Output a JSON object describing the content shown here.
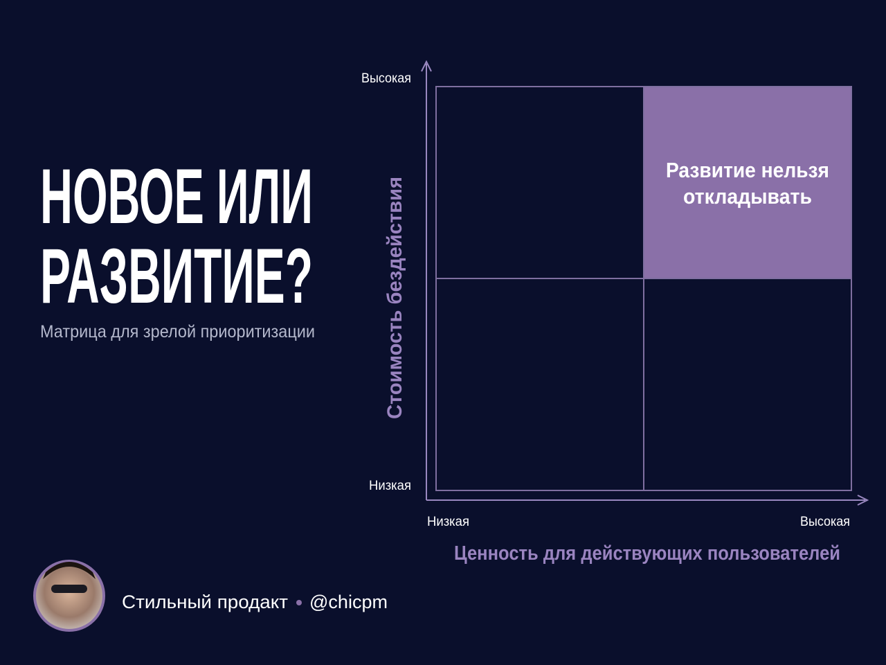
{
  "title": {
    "lines": [
      "НОВОЕ ИЛИ",
      "РАЗВИТИЕ?"
    ]
  },
  "subtitle": "Матрица для зрелой приоритизации",
  "matrix": {
    "y_axis": {
      "label": "Стоимость бездействия",
      "high": "Высокая",
      "low": "Низкая"
    },
    "x_axis": {
      "label": "Ценность для действующих пользователей",
      "low": "Низкая",
      "high": "Высокая"
    },
    "highlight_quadrant": {
      "lines": [
        "Развитие нельзя",
        "откладывать"
      ]
    }
  },
  "footer": {
    "name": "Стильный продакт",
    "handle": "@chicpm"
  }
}
